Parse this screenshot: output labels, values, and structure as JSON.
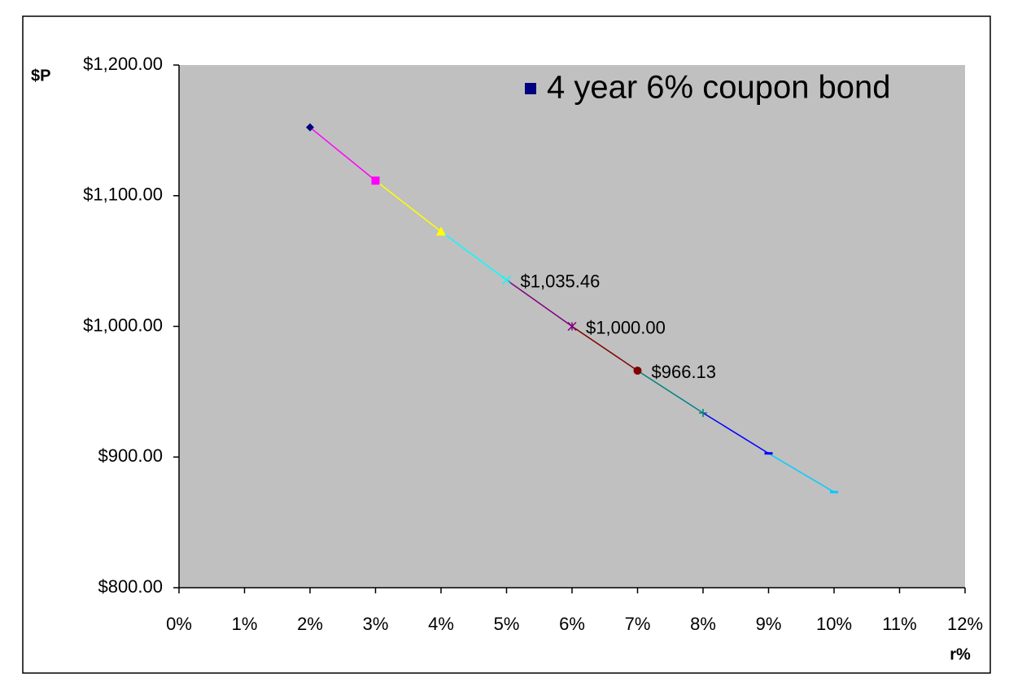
{
  "chart_data": {
    "type": "line",
    "series": [
      {
        "name": "4 year 6% coupon bond",
        "color": "#000080",
        "x": [
          2,
          3,
          4,
          5,
          6,
          7,
          8,
          9,
          10
        ],
        "values": [
          1152.31,
          1111.51,
          1072.6,
          1035.46,
          1000.0,
          966.13,
          933.76,
          902.81,
          873.21
        ],
        "value_labels": [
          null,
          null,
          null,
          "$1,035.46",
          "$1,000.00",
          "$966.13",
          null,
          null,
          null
        ],
        "point_colors": [
          "#000080",
          "#ff00ff",
          "#ffff00",
          "#00ffff",
          "#800080",
          "#800000",
          "#008080",
          "#0000ff",
          "#00ccff"
        ],
        "markers": [
          "diamond",
          "square",
          "triangle",
          "x",
          "star",
          "circle",
          "plus",
          "dash",
          "dash"
        ]
      }
    ],
    "xlabel": "r%",
    "ylabel": "$P",
    "xlim": [
      0,
      12
    ],
    "xticks": [
      {
        "value": 0,
        "label": "0%"
      },
      {
        "value": 1,
        "label": "1%"
      },
      {
        "value": 2,
        "label": "2%"
      },
      {
        "value": 3,
        "label": "3%"
      },
      {
        "value": 4,
        "label": "4%"
      },
      {
        "value": 5,
        "label": "5%"
      },
      {
        "value": 6,
        "label": "6%"
      },
      {
        "value": 7,
        "label": "7%"
      },
      {
        "value": 8,
        "label": "8%"
      },
      {
        "value": 9,
        "label": "9%"
      },
      {
        "value": 10,
        "label": "10%"
      },
      {
        "value": 11,
        "label": "11%"
      },
      {
        "value": 12,
        "label": "12%"
      }
    ],
    "ylim": [
      800,
      1200
    ],
    "yticks": [
      {
        "value": 800,
        "label": "$800.00"
      },
      {
        "value": 900,
        "label": "$900.00"
      },
      {
        "value": 1000,
        "label": "$1,000.00"
      },
      {
        "value": 1100,
        "label": "$1,100.00"
      },
      {
        "value": 1200,
        "label": "$1,200.00"
      }
    ],
    "plot_background": "#c0c0c0",
    "legend": "top-right"
  }
}
